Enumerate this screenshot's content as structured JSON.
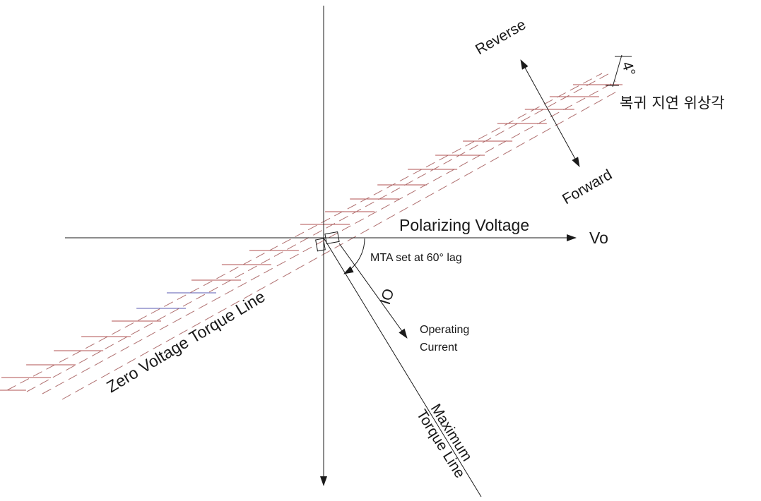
{
  "labels": {
    "polarizing_voltage": "Polarizing Voltage",
    "vo": "Vo",
    "mta": "MTA set at 60° lag",
    "io": "IO",
    "operating_current_line1": "Operating",
    "operating_current_line2": "Current",
    "zero_voltage_torque_line": "Zero  Voltage Torque Line",
    "maximum_torque_line1": "Maximum",
    "maximum_torque_line2": "Torque Line",
    "reverse": "Reverse",
    "forward": "Forward",
    "four_degrees": "4°",
    "korean_caption": "복귀 지연 위상각"
  },
  "colors": {
    "axis": "#1a1a1a",
    "hatch": "#b05050",
    "hatch_alt": "#5a5ab0",
    "dashed": "#b07070"
  }
}
